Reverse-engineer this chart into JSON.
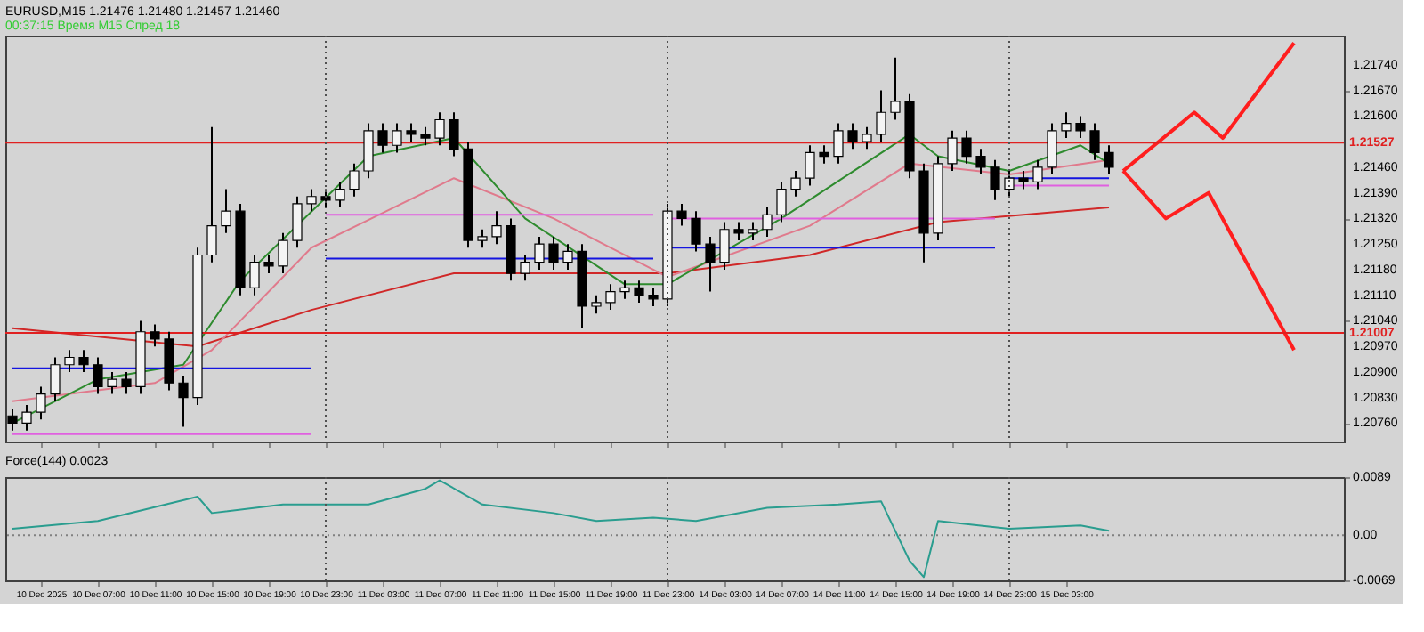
{
  "chart_data": [
    {
      "type": "candlestick",
      "title": "EURUSD,M15  1.21476 1.21480 1.21457 1.21460",
      "subtitle": "00:37:15 Время М15 Спред 18",
      "categories": [
        null,
        null,
        "10 Dec 2025",
        null,
        null,
        null,
        "10 Dec 07:00",
        null,
        null,
        null,
        "10 Dec 11:00",
        null,
        null,
        null,
        "10 Dec 15:00",
        null,
        null,
        null,
        "10 Dec 19:00",
        null,
        null,
        null,
        "10 Dec 23:00",
        null,
        null,
        null,
        "11 Dec 03:00",
        null,
        null,
        null,
        "11 Dec 07:00",
        null,
        null,
        null,
        "11 Dec 11:00",
        null,
        null,
        null,
        "11 Dec 15:00",
        null,
        null,
        null,
        "11 Dec 19:00",
        null,
        null,
        null,
        "11 Dec 23:00",
        null,
        null,
        null,
        "14 Dec 03:00",
        null,
        null,
        null,
        "14 Dec 07:00",
        null,
        null,
        null,
        "14 Dec 11:00",
        null,
        null,
        null,
        "14 Dec 15:00",
        null,
        null,
        null,
        "14 Dec 19:00",
        null,
        null,
        null,
        "14 Dec 23:00",
        null,
        null,
        null,
        "15 Dec 03:00",
        null,
        null,
        null,
        null,
        null,
        null,
        null,
        null,
        null,
        null,
        null,
        null,
        null,
        null,
        null,
        null,
        null,
        null,
        null
      ],
      "ohlc": [
        [
          1.2078,
          1.208,
          1.2074,
          1.2076
        ],
        [
          1.2076,
          1.2081,
          1.2074,
          1.2079
        ],
        [
          1.2079,
          1.2086,
          1.2077,
          1.2084
        ],
        [
          1.2084,
          1.2094,
          1.2082,
          1.2092
        ],
        [
          1.2092,
          1.2096,
          1.209,
          1.2094
        ],
        [
          1.2094,
          1.2096,
          1.209,
          1.2092
        ],
        [
          1.2092,
          1.2094,
          1.2084,
          1.2086
        ],
        [
          1.2086,
          1.209,
          1.2084,
          1.2088
        ],
        [
          1.2088,
          1.209,
          1.2084,
          1.2086
        ],
        [
          1.2086,
          1.2104,
          1.2084,
          1.2101
        ],
        [
          1.2101,
          1.2103,
          1.2097,
          1.2099
        ],
        [
          1.2099,
          1.2101,
          1.2085,
          1.2087
        ],
        [
          1.2087,
          1.2089,
          1.2075,
          1.2083
        ],
        [
          1.2083,
          1.2124,
          1.2081,
          1.2122
        ],
        [
          1.2122,
          1.2157,
          1.212,
          1.213
        ],
        [
          1.213,
          1.214,
          1.2128,
          1.2134
        ],
        [
          1.2134,
          1.2136,
          1.2111,
          1.2113
        ],
        [
          1.2113,
          1.2122,
          1.2111,
          1.212
        ],
        [
          1.212,
          1.2122,
          1.2117,
          1.2119
        ],
        [
          1.2119,
          1.2128,
          1.2117,
          1.2126
        ],
        [
          1.2126,
          1.2138,
          1.2124,
          1.2136
        ],
        [
          1.2136,
          1.214,
          1.2134,
          1.2138
        ],
        [
          1.2138,
          1.214,
          1.2135,
          1.2137
        ],
        [
          1.2137,
          1.2142,
          1.2135,
          1.214
        ],
        [
          1.214,
          1.2147,
          1.2138,
          1.2145
        ],
        [
          1.2145,
          1.2158,
          1.2143,
          1.2156
        ],
        [
          1.2156,
          1.2158,
          1.215,
          1.2152
        ],
        [
          1.2152,
          1.2158,
          1.215,
          1.2156
        ],
        [
          1.2156,
          1.2158,
          1.2153,
          1.2155
        ],
        [
          1.2155,
          1.2157,
          1.2152,
          1.2154
        ],
        [
          1.2154,
          1.2161,
          1.2152,
          1.2159
        ],
        [
          1.2159,
          1.2161,
          1.2149,
          1.2151
        ],
        [
          1.2151,
          1.2153,
          1.2124,
          1.2126
        ],
        [
          1.2126,
          1.2129,
          1.2124,
          1.2127
        ],
        [
          1.2127,
          1.2134,
          1.2125,
          1.213
        ],
        [
          1.213,
          1.2132,
          1.2115,
          1.2117
        ],
        [
          1.2117,
          1.2122,
          1.2115,
          1.212
        ],
        [
          1.212,
          1.2127,
          1.2118,
          1.2125
        ],
        [
          1.2125,
          1.2127,
          1.2118,
          1.212
        ],
        [
          1.212,
          1.2125,
          1.2118,
          1.2123
        ],
        [
          1.2123,
          1.2125,
          1.2102,
          1.2108
        ],
        [
          1.2108,
          1.2111,
          1.2106,
          1.2109
        ],
        [
          1.2109,
          1.2114,
          1.2107,
          1.2112
        ],
        [
          1.2112,
          1.2115,
          1.211,
          1.2113
        ],
        [
          1.2113,
          1.2115,
          1.2109,
          1.2111
        ],
        [
          1.2111,
          1.2113,
          1.2108,
          1.211
        ],
        [
          1.211,
          1.2136,
          1.2108,
          1.2134
        ],
        [
          1.2134,
          1.2136,
          1.213,
          1.2132
        ],
        [
          1.2132,
          1.2134,
          1.2123,
          1.2125
        ],
        [
          1.2125,
          1.2127,
          1.2112,
          1.212
        ],
        [
          1.212,
          1.2131,
          1.2118,
          1.2129
        ],
        [
          1.2129,
          1.2131,
          1.2126,
          1.2128
        ],
        [
          1.2128,
          1.2131,
          1.2126,
          1.2129
        ],
        [
          1.2129,
          1.2135,
          1.2127,
          1.2133
        ],
        [
          1.2133,
          1.2142,
          1.2131,
          1.214
        ],
        [
          1.214,
          1.2145,
          1.2138,
          1.2143
        ],
        [
          1.2143,
          1.2152,
          1.2141,
          1.215
        ],
        [
          1.215,
          1.2152,
          1.2147,
          1.2149
        ],
        [
          1.2149,
          1.2158,
          1.2147,
          1.2156
        ],
        [
          1.2156,
          1.2158,
          1.2151,
          1.2153
        ],
        [
          1.2153,
          1.2157,
          1.2151,
          1.2155
        ],
        [
          1.2155,
          1.2167,
          1.2153,
          1.2161
        ],
        [
          1.2161,
          1.2176,
          1.2159,
          1.2164
        ],
        [
          1.2164,
          1.2166,
          1.2143,
          1.2145
        ],
        [
          1.2145,
          1.2147,
          1.212,
          1.2128
        ],
        [
          1.2128,
          1.2149,
          1.2126,
          1.2147
        ],
        [
          1.2147,
          1.2156,
          1.2145,
          1.2154
        ],
        [
          1.2154,
          1.2156,
          1.2147,
          1.2149
        ],
        [
          1.2149,
          1.2151,
          1.2144,
          1.2146
        ],
        [
          1.2146,
          1.2148,
          1.2137,
          1.214
        ],
        [
          1.214,
          1.2145,
          1.2138,
          1.2143
        ],
        [
          1.2143,
          1.2145,
          1.214,
          1.2142
        ],
        [
          1.2142,
          1.2148,
          1.214,
          1.2146
        ],
        [
          1.2146,
          1.2158,
          1.2144,
          1.2156
        ],
        [
          1.2156,
          1.2161,
          1.2154,
          1.2158
        ],
        [
          1.2158,
          1.216,
          1.2154,
          1.2156
        ],
        [
          1.2156,
          1.2158,
          1.2148,
          1.215
        ],
        [
          1.215,
          1.2152,
          1.2144,
          1.2146
        ],
        null,
        null,
        null,
        null,
        null,
        null,
        null,
        null,
        null,
        null,
        null,
        null,
        null,
        null,
        null,
        null
      ],
      "series": [
        {
          "type": "line",
          "color": "#d02828",
          "values": [
            1.2102,
            null,
            null,
            null,
            null,
            null,
            null,
            null,
            null,
            null,
            null,
            null,
            null,
            1.2097,
            null,
            null,
            null,
            null,
            null,
            null,
            null,
            1.2107,
            null,
            null,
            null,
            null,
            null,
            null,
            null,
            null,
            null,
            1.2117,
            null,
            null,
            null,
            null,
            null,
            null,
            null,
            null,
            null,
            null,
            null,
            null,
            null,
            null,
            1.2117,
            null,
            null,
            null,
            null,
            null,
            null,
            null,
            null,
            null,
            1.2122,
            null,
            null,
            null,
            null,
            null,
            null,
            null,
            null,
            1.2131,
            null,
            null,
            null,
            null,
            null,
            null,
            null,
            null,
            null,
            null,
            null,
            1.2135,
            null,
            null,
            null,
            null,
            null,
            null,
            null,
            null,
            null,
            null,
            null,
            null,
            null,
            null,
            null,
            null
          ]
        },
        {
          "type": "line",
          "color": "#e07a8c",
          "values": [
            1.2082,
            null,
            null,
            null,
            null,
            null,
            null,
            null,
            null,
            null,
            1.2087,
            null,
            null,
            null,
            1.2096,
            null,
            null,
            null,
            null,
            null,
            null,
            1.2124,
            null,
            null,
            null,
            null,
            null,
            null,
            null,
            null,
            null,
            1.2143,
            null,
            null,
            null,
            null,
            null,
            null,
            1.2132,
            null,
            null,
            null,
            null,
            null,
            null,
            null,
            1.2116,
            null,
            null,
            null,
            null,
            null,
            null,
            null,
            null,
            null,
            1.213,
            null,
            null,
            null,
            null,
            null,
            null,
            1.2147,
            null,
            null,
            null,
            null,
            null,
            null,
            1.2144,
            null,
            null,
            null,
            null,
            null,
            null,
            1.2148,
            null,
            null,
            null,
            null,
            null,
            null,
            null,
            null,
            null,
            null,
            null,
            null,
            null,
            null,
            null,
            null
          ]
        },
        {
          "type": "line",
          "color": "#2e8b2e",
          "values": [
            1.2076,
            null,
            null,
            null,
            null,
            null,
            1.2088,
            null,
            null,
            null,
            null,
            null,
            1.2092,
            null,
            null,
            null,
            1.2115,
            null,
            null,
            null,
            null,
            null,
            null,
            null,
            null,
            1.2149,
            null,
            null,
            null,
            null,
            null,
            1.2154,
            null,
            null,
            null,
            null,
            1.2132,
            null,
            null,
            null,
            null,
            null,
            null,
            1.2114,
            null,
            null,
            1.2114,
            null,
            null,
            null,
            null,
            null,
            null,
            null,
            1.2132,
            null,
            null,
            null,
            null,
            null,
            null,
            null,
            null,
            1.2155,
            null,
            1.2149,
            null,
            null,
            null,
            null,
            1.2145,
            null,
            null,
            null,
            null,
            1.2152,
            null,
            1.2147,
            null,
            null,
            null,
            null,
            null,
            null,
            null,
            null,
            null,
            null,
            null,
            null,
            null,
            null,
            null,
            null
          ]
        },
        {
          "type": "line",
          "color": "#1414e0",
          "values": [
            1.2091,
            null,
            null,
            null,
            null,
            null,
            null,
            null,
            null,
            null,
            null,
            null,
            null,
            null,
            null,
            null,
            null,
            null,
            null,
            null,
            null,
            1.2091,
            null,
            null,
            null,
            null,
            null,
            null,
            null,
            null,
            null,
            null,
            null,
            null,
            null,
            null,
            null,
            null,
            null,
            null,
            null,
            null,
            null,
            null,
            null,
            null,
            null,
            null,
            null,
            null,
            null,
            null,
            null,
            null,
            null,
            null,
            null,
            null,
            null,
            null,
            null,
            null,
            null,
            null,
            null,
            null,
            null,
            null,
            null,
            null,
            null,
            null,
            null,
            null,
            null,
            null,
            null,
            null,
            null,
            null,
            null,
            null,
            null,
            null,
            null,
            null,
            null,
            null,
            null,
            null,
            null,
            null,
            null,
            null
          ]
        },
        {
          "type": "line",
          "color": "#1414e0",
          "values": [
            null,
            null,
            null,
            null,
            null,
            null,
            null,
            null,
            null,
            null,
            null,
            null,
            null,
            null,
            null,
            null,
            null,
            null,
            null,
            null,
            null,
            null,
            1.2121,
            null,
            null,
            null,
            null,
            null,
            null,
            null,
            null,
            null,
            null,
            null,
            null,
            null,
            null,
            null,
            null,
            null,
            null,
            null,
            null,
            null,
            null,
            1.2121,
            null,
            null,
            null,
            null,
            null,
            null,
            null,
            null,
            null,
            null,
            null,
            null,
            null,
            null,
            null,
            null,
            null,
            null,
            null,
            null,
            null,
            null,
            null,
            null,
            null,
            null,
            null,
            null,
            null,
            null,
            null,
            null,
            null,
            null,
            null,
            null,
            null,
            null,
            null,
            null,
            null,
            null,
            null,
            null,
            null,
            null,
            null,
            null
          ]
        },
        {
          "type": "line",
          "color": "#1414e0",
          "values": [
            null,
            null,
            null,
            null,
            null,
            null,
            null,
            null,
            null,
            null,
            null,
            null,
            null,
            null,
            null,
            null,
            null,
            null,
            null,
            null,
            null,
            null,
            null,
            null,
            null,
            null,
            null,
            null,
            null,
            null,
            null,
            null,
            null,
            null,
            null,
            null,
            null,
            null,
            null,
            null,
            null,
            null,
            null,
            null,
            null,
            null,
            1.2124,
            null,
            null,
            null,
            null,
            null,
            null,
            null,
            null,
            null,
            null,
            null,
            null,
            null,
            null,
            null,
            null,
            null,
            null,
            null,
            null,
            null,
            null,
            1.2124,
            null,
            null,
            null,
            null,
            null,
            null,
            null,
            null,
            null,
            null,
            null,
            null,
            null,
            null,
            null,
            null,
            null,
            null,
            null,
            null,
            null,
            null,
            null,
            null
          ]
        },
        {
          "type": "line",
          "color": "#1414e0",
          "values": [
            null,
            null,
            null,
            null,
            null,
            null,
            null,
            null,
            null,
            null,
            null,
            null,
            null,
            null,
            null,
            null,
            null,
            null,
            null,
            null,
            null,
            null,
            null,
            null,
            null,
            null,
            null,
            null,
            null,
            null,
            null,
            null,
            null,
            null,
            null,
            null,
            null,
            null,
            null,
            null,
            null,
            null,
            null,
            null,
            null,
            null,
            null,
            null,
            null,
            null,
            null,
            null,
            null,
            null,
            null,
            null,
            null,
            null,
            null,
            null,
            null,
            null,
            null,
            null,
            null,
            null,
            null,
            null,
            null,
            null,
            1.2143,
            null,
            null,
            null,
            null,
            null,
            null,
            1.2143,
            null,
            null,
            null,
            null,
            null,
            null,
            null,
            null,
            null,
            null,
            null,
            null,
            null,
            null,
            null,
            null
          ]
        },
        {
          "type": "line",
          "color": "#e060e0",
          "values": [
            1.2073,
            null,
            null,
            null,
            null,
            null,
            null,
            null,
            null,
            null,
            null,
            null,
            null,
            null,
            null,
            null,
            null,
            null,
            null,
            null,
            null,
            1.2073,
            null,
            null,
            null,
            null,
            null,
            null,
            null,
            null,
            null,
            null,
            null,
            null,
            null,
            null,
            null,
            null,
            null,
            null,
            null,
            null,
            null,
            null,
            null,
            null,
            null,
            null,
            null,
            null,
            null,
            null,
            null,
            null,
            null,
            null,
            null,
            null,
            null,
            null,
            null,
            null,
            null,
            null,
            null,
            null,
            null,
            null,
            null,
            null,
            null,
            null,
            null,
            null,
            null,
            null,
            null,
            null,
            null,
            null,
            null,
            null,
            null,
            null,
            null,
            null,
            null,
            null,
            null,
            null,
            null,
            null,
            null,
            null
          ]
        },
        {
          "type": "line",
          "color": "#e060e0",
          "values": [
            null,
            null,
            null,
            null,
            null,
            null,
            null,
            null,
            null,
            null,
            null,
            null,
            null,
            null,
            null,
            null,
            null,
            null,
            null,
            null,
            null,
            null,
            1.2133,
            null,
            null,
            null,
            null,
            null,
            null,
            null,
            null,
            null,
            null,
            null,
            null,
            null,
            null,
            null,
            null,
            null,
            null,
            null,
            null,
            null,
            null,
            1.2133,
            null,
            null,
            null,
            null,
            null,
            null,
            null,
            null,
            null,
            null,
            null,
            null,
            null,
            null,
            null,
            null,
            null,
            null,
            null,
            null,
            null,
            null,
            null,
            null,
            null,
            null,
            null,
            null,
            null,
            null,
            null,
            null,
            null,
            null,
            null,
            null,
            null,
            null,
            null,
            null,
            null,
            null,
            null,
            null,
            null,
            null,
            null,
            null
          ]
        },
        {
          "type": "line",
          "color": "#e060e0",
          "values": [
            null,
            null,
            null,
            null,
            null,
            null,
            null,
            null,
            null,
            null,
            null,
            null,
            null,
            null,
            null,
            null,
            null,
            null,
            null,
            null,
            null,
            null,
            null,
            null,
            null,
            null,
            null,
            null,
            null,
            null,
            null,
            null,
            null,
            null,
            null,
            null,
            null,
            null,
            null,
            null,
            null,
            null,
            null,
            null,
            null,
            null,
            1.2132,
            null,
            null,
            null,
            null,
            null,
            null,
            null,
            null,
            null,
            null,
            null,
            null,
            null,
            null,
            null,
            null,
            null,
            null,
            null,
            null,
            null,
            null,
            1.2132,
            null,
            null,
            null,
            null,
            null,
            null,
            null,
            null,
            null,
            null,
            null,
            null,
            null,
            null,
            null,
            null,
            null,
            null,
            null,
            null,
            null,
            null,
            null,
            null
          ]
        },
        {
          "type": "line",
          "color": "#e060e0",
          "values": [
            null,
            null,
            null,
            null,
            null,
            null,
            null,
            null,
            null,
            null,
            null,
            null,
            null,
            null,
            null,
            null,
            null,
            null,
            null,
            null,
            null,
            null,
            null,
            null,
            null,
            null,
            null,
            null,
            null,
            null,
            null,
            null,
            null,
            null,
            null,
            null,
            null,
            null,
            null,
            null,
            null,
            null,
            null,
            null,
            null,
            null,
            null,
            null,
            null,
            null,
            null,
            null,
            null,
            null,
            null,
            null,
            null,
            null,
            null,
            null,
            null,
            null,
            null,
            null,
            null,
            null,
            null,
            null,
            null,
            null,
            1.2141,
            null,
            null,
            null,
            null,
            null,
            null,
            1.2141,
            null,
            null,
            null,
            null,
            null,
            null,
            null,
            null,
            null,
            null,
            null,
            null,
            null,
            null,
            null,
            null
          ]
        },
        {
          "type": "line",
          "color": "#ff1e1e",
          "values": [
            null,
            null,
            null,
            null,
            null,
            null,
            null,
            null,
            null,
            null,
            null,
            null,
            null,
            null,
            null,
            null,
            null,
            null,
            null,
            null,
            null,
            null,
            null,
            null,
            null,
            null,
            null,
            null,
            null,
            null,
            null,
            null,
            null,
            null,
            null,
            null,
            null,
            null,
            null,
            null,
            null,
            null,
            null,
            null,
            null,
            null,
            null,
            null,
            null,
            null,
            null,
            null,
            null,
            null,
            null,
            null,
            null,
            null,
            null,
            null,
            null,
            null,
            null,
            null,
            null,
            null,
            null,
            null,
            null,
            null,
            null,
            null,
            null,
            null,
            null,
            null,
            null,
            null,
            1.2145,
            null,
            null,
            null,
            null,
            1.2161,
            null,
            1.2154,
            null,
            null,
            null,
            null,
            1.218,
            null,
            null,
            null
          ]
        },
        {
          "type": "line",
          "color": "#ff1e1e",
          "values": [
            null,
            null,
            null,
            null,
            null,
            null,
            null,
            null,
            null,
            null,
            null,
            null,
            null,
            null,
            null,
            null,
            null,
            null,
            null,
            null,
            null,
            null,
            null,
            null,
            null,
            null,
            null,
            null,
            null,
            null,
            null,
            null,
            null,
            null,
            null,
            null,
            null,
            null,
            null,
            null,
            null,
            null,
            null,
            null,
            null,
            null,
            null,
            null,
            null,
            null,
            null,
            null,
            null,
            null,
            null,
            null,
            null,
            null,
            null,
            null,
            null,
            null,
            null,
            null,
            null,
            null,
            null,
            null,
            null,
            null,
            null,
            null,
            null,
            null,
            null,
            null,
            null,
            null,
            1.2145,
            null,
            null,
            1.2132,
            null,
            null,
            1.2139,
            null,
            null,
            null,
            null,
            null,
            1.2096,
            null,
            null,
            null
          ]
        }
      ],
      "ref_lines": [
        {
          "axis": "y",
          "value": 1.21527,
          "label": "1.21527",
          "color": "#e02020"
        },
        {
          "axis": "y",
          "value": 1.21007,
          "label": "1.21007",
          "color": "#e02020"
        },
        {
          "axis": "x",
          "value": "10 Dec 23:00",
          "color": "#505050",
          "line_style": "dotted"
        },
        {
          "axis": "x",
          "value": "11 Dec 23:00",
          "color": "#505050",
          "line_style": "dotted"
        },
        {
          "axis": "x",
          "value": "14 Dec 23:00",
          "color": "#505050",
          "line_style": "dotted"
        }
      ],
      "ylim": [
        1.2071,
        1.2182
      ],
      "yticks": [
        {
          "value": 1.2076,
          "label": "1.20760"
        },
        {
          "value": 1.2083,
          "label": "1.20830"
        },
        {
          "value": 1.209,
          "label": "1.20900"
        },
        {
          "value": 1.2097,
          "label": "1.20970"
        },
        {
          "value": 1.2104,
          "label": "1.21040"
        },
        {
          "value": 1.2111,
          "label": "1.21110"
        },
        {
          "value": 1.2118,
          "label": "1.21180"
        },
        {
          "value": 1.2125,
          "label": "1.21250"
        },
        {
          "value": 1.2132,
          "label": "1.21320"
        },
        {
          "value": 1.2139,
          "label": "1.21390"
        },
        {
          "value": 1.2146,
          "label": "1.21460"
        },
        {
          "value": 1.216,
          "label": "1.21600"
        },
        {
          "value": 1.2167,
          "label": "1.21670"
        },
        {
          "value": 1.2174,
          "label": "1.21740"
        }
      ],
      "tick_labels": "y",
      "grid": false,
      "legend": false
    },
    {
      "type": "line",
      "title": "Force(144) 0.0023",
      "color": "#2a9d8f",
      "categories": [
        null,
        null,
        "10 Dec 2025",
        null,
        null,
        null,
        "10 Dec 07:00",
        null,
        null,
        null,
        "10 Dec 11:00",
        null,
        null,
        null,
        "10 Dec 15:00",
        null,
        null,
        null,
        "10 Dec 19:00",
        null,
        null,
        null,
        "10 Dec 23:00",
        null,
        null,
        null,
        "11 Dec 03:00",
        null,
        null,
        null,
        "11 Dec 07:00",
        null,
        null,
        null,
        "11 Dec 11:00",
        null,
        null,
        null,
        "11 Dec 15:00",
        null,
        null,
        null,
        "11 Dec 19:00",
        null,
        null,
        null,
        "11 Dec 23:00",
        null,
        null,
        null,
        "14 Dec 03:00",
        null,
        null,
        null,
        "14 Dec 07:00",
        null,
        null,
        null,
        "14 Dec 11:00",
        null,
        null,
        null,
        "14 Dec 15:00",
        null,
        null,
        null,
        "14 Dec 19:00",
        null,
        null,
        null,
        "14 Dec 23:00",
        null,
        null,
        null,
        "15 Dec 03:00",
        null,
        null,
        null,
        null,
        null,
        null,
        null,
        null,
        null,
        null,
        null,
        null,
        null,
        null,
        null,
        null,
        null,
        null,
        null
      ],
      "values": [
        0.001,
        null,
        null,
        null,
        null,
        null,
        0.0022,
        null,
        null,
        null,
        null,
        null,
        null,
        0.0059,
        0.0034,
        null,
        null,
        null,
        null,
        0.0047,
        null,
        null,
        null,
        null,
        null,
        0.0047,
        null,
        null,
        null,
        0.0071,
        0.0084,
        null,
        null,
        0.0047,
        null,
        null,
        null,
        null,
        0.0034,
        null,
        null,
        0.0022,
        null,
        null,
        null,
        0.0027,
        null,
        null,
        0.0022,
        null,
        null,
        null,
        null,
        0.0042,
        null,
        null,
        null,
        null,
        0.0047,
        null,
        null,
        0.0052,
        null,
        -0.0039,
        -0.0064,
        0.0022,
        null,
        null,
        null,
        null,
        0.001,
        null,
        null,
        null,
        null,
        0.0015,
        null,
        0.0007,
        null,
        null,
        null,
        null,
        null,
        null,
        null,
        null,
        null,
        null,
        null,
        null,
        null,
        null,
        null,
        null
      ],
      "ref_lines": [
        {
          "axis": "y",
          "value": 0,
          "color": "#808080",
          "line_style": "dotted"
        },
        {
          "axis": "x",
          "value": "10 Dec 23:00",
          "color": "#505050",
          "line_style": "dotted"
        },
        {
          "axis": "x",
          "value": "11 Dec 23:00",
          "color": "#505050",
          "line_style": "dotted"
        },
        {
          "axis": "x",
          "value": "14 Dec 23:00",
          "color": "#505050",
          "line_style": "dotted"
        }
      ],
      "ylim": [
        -0.0069,
        0.0089
      ],
      "yticks": [
        {
          "value": 0.0089,
          "label": "0.0089"
        },
        {
          "value": 0,
          "label": "0.00"
        },
        {
          "value": -0.0069,
          "label": "-0.0069"
        }
      ],
      "grid": false,
      "legend": false
    }
  ]
}
